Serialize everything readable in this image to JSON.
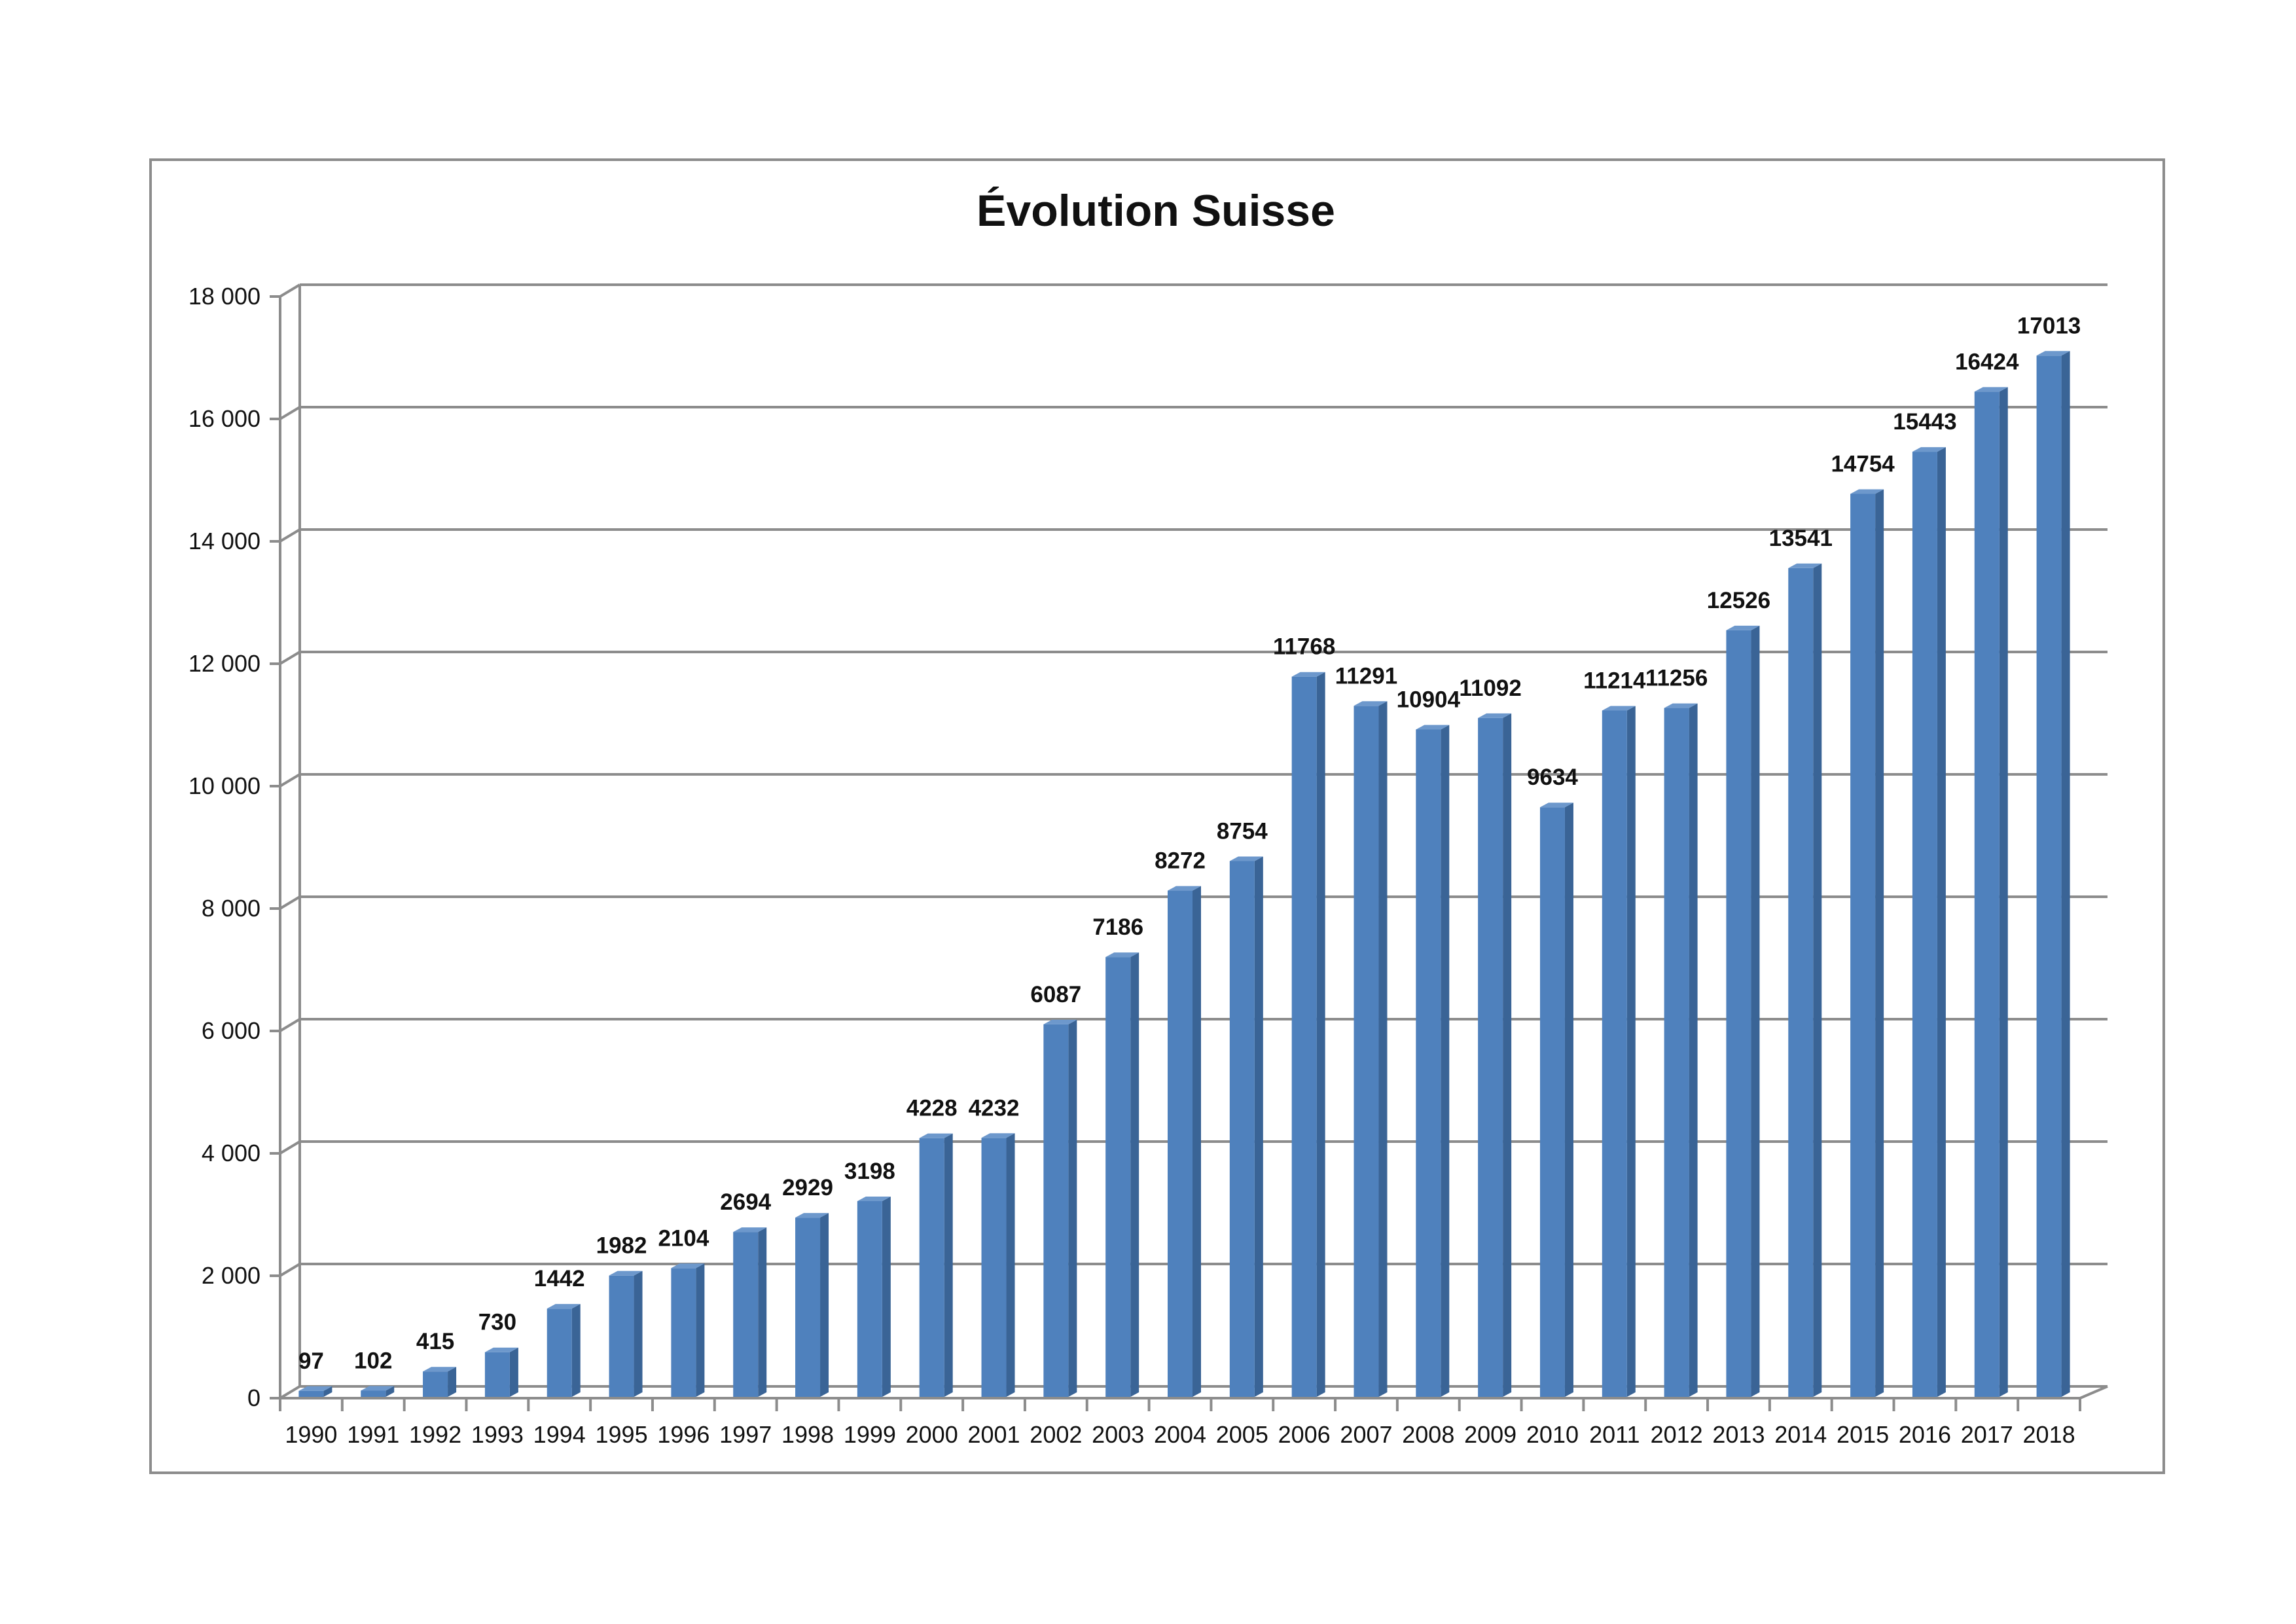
{
  "chart_data": {
    "type": "bar",
    "title": "Évolution Suisse",
    "xlabel": "",
    "ylabel": "",
    "categories": [
      "1990",
      "1991",
      "1992",
      "1993",
      "1994",
      "1995",
      "1996",
      "1997",
      "1998",
      "1999",
      "2000",
      "2001",
      "2002",
      "2003",
      "2004",
      "2005",
      "2006",
      "2007",
      "2008",
      "2009",
      "2010",
      "2011",
      "2012",
      "2013",
      "2014",
      "2015",
      "2016",
      "2017",
      "2018"
    ],
    "values": [
      97,
      102,
      415,
      730,
      1442,
      1982,
      2104,
      2694,
      2929,
      3198,
      4228,
      4232,
      6087,
      7186,
      8272,
      8754,
      11768,
      11291,
      10904,
      11092,
      9634,
      11214,
      11256,
      12526,
      13541,
      14754,
      15443,
      16424,
      17013
    ],
    "ylim": [
      0,
      18000
    ],
    "yticks": [
      0,
      2000,
      4000,
      6000,
      8000,
      10000,
      12000,
      14000,
      16000,
      18000
    ],
    "ytick_labels": [
      "0",
      "2 000",
      "4 000",
      "6 000",
      "8 000",
      "10 000",
      "12 000",
      "14 000",
      "16 000",
      "18 000"
    ],
    "grid": true,
    "legend": "none",
    "colors": {
      "bar_front": "#4f81bd",
      "bar_side": "#3a6496",
      "bar_top": "#6d98cc",
      "grid": "#8c8c8c",
      "text": "#111111"
    }
  }
}
